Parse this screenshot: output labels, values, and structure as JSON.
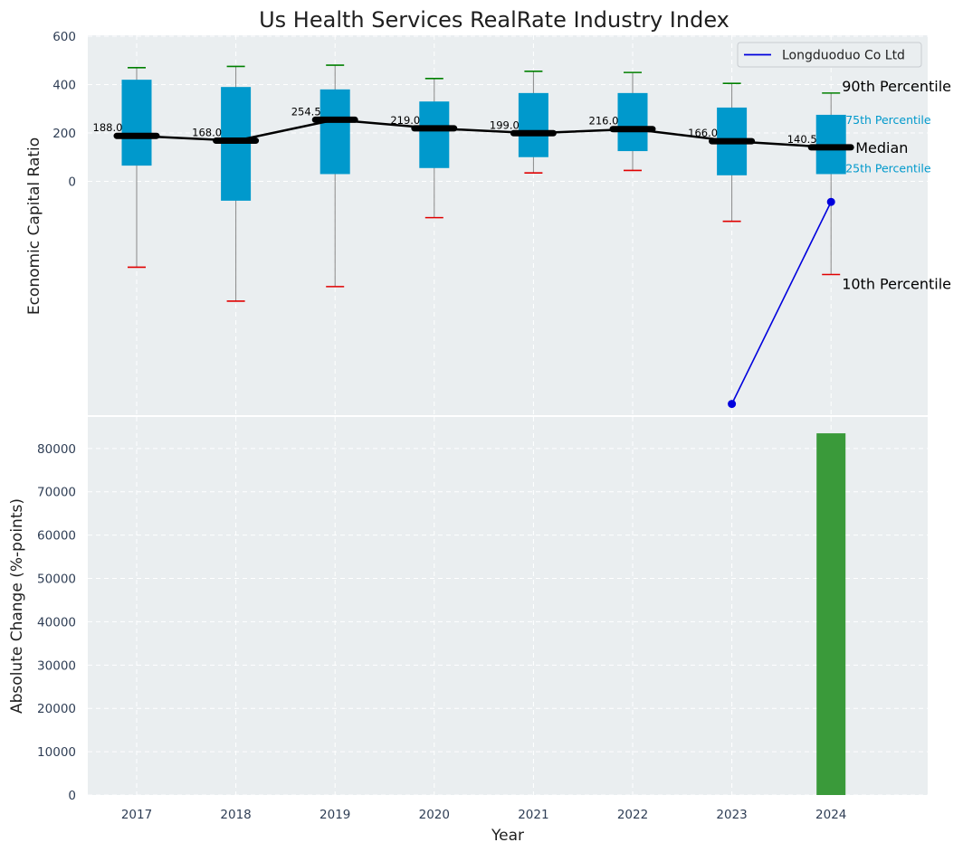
{
  "title": "Us Health Services RealRate Industry Index",
  "colors": {
    "panel_bg": "#eaeef0",
    "box": "#0099cc",
    "median": "#000000",
    "whisker": "#888888",
    "cap_high": "#008000",
    "cap_low": "#e00000",
    "company": "#0000dd",
    "bar": "#3a9a3a",
    "quartile_text": "#0099cc"
  },
  "chart_data": [
    {
      "type": "box",
      "ylabel": "Economic Capital Ratio",
      "ytick_labels": [
        "0",
        "200",
        "400",
        "600"
      ],
      "ylim": [
        -950,
        600
      ],
      "grid": true,
      "legend_position": "top-right",
      "categories": [
        "2017",
        "2018",
        "2019",
        "2020",
        "2021",
        "2022",
        "2023",
        "2024"
      ],
      "p10": [
        -355,
        -495,
        -435,
        -150,
        35,
        45,
        -165,
        -385
      ],
      "p25": [
        65,
        -80,
        30,
        55,
        100,
        125,
        25,
        30
      ],
      "median": [
        188.0,
        168.0,
        254.5,
        219.0,
        199.0,
        216.0,
        166.0,
        140.5
      ],
      "median_labels": [
        "188.0",
        "168.0",
        "254.5",
        "219.0",
        "199.0",
        "216.0",
        "166.0",
        "140.5"
      ],
      "p75": [
        420,
        390,
        380,
        330,
        365,
        365,
        305,
        275
      ],
      "p90": [
        470,
        475,
        480,
        425,
        455,
        450,
        405,
        365
      ],
      "annotations": {
        "p90": "90th Percentile",
        "p75": "75th Percentile",
        "median": "Median",
        "p25": "25th Percentile",
        "p10": "10th Percentile"
      },
      "series": [
        {
          "name": "Longduoduo Co Ltd",
          "x": [
            "2023",
            "2024"
          ],
          "values": [
            -920,
            -85
          ]
        }
      ]
    },
    {
      "type": "bar",
      "xlabel": "Year",
      "ylabel": "Absolute Change (%-points)",
      "ytick_labels": [
        "0",
        "10000",
        "20000",
        "30000",
        "40000",
        "50000",
        "60000",
        "70000",
        "80000"
      ],
      "xtick_labels": [
        "2017",
        "2018",
        "2019",
        "2020",
        "2021",
        "2022",
        "2023",
        "2024"
      ],
      "ylim": [
        0,
        87000
      ],
      "grid": true,
      "categories": [
        "2024"
      ],
      "values": [
        83500
      ]
    }
  ]
}
